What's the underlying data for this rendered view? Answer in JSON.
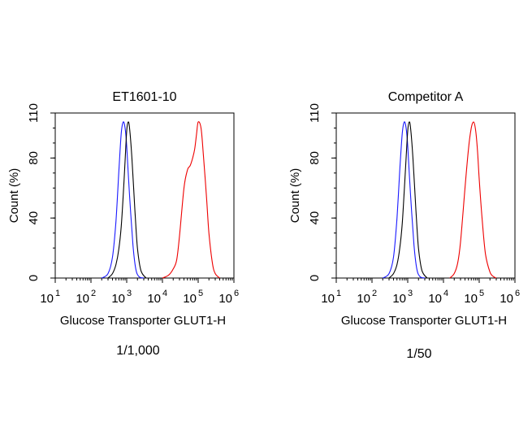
{
  "chart_data": [
    {
      "type": "line",
      "title": "ET1601-10",
      "xlabel": "Glucose Transporter GLUT1-H",
      "ylabel": "Count  (%)",
      "caption": "1/1,000",
      "x_scale": "log10",
      "xlim": [
        10,
        1000000
      ],
      "ylim": [
        0,
        110
      ],
      "x_ticks": [
        {
          "base": "10",
          "exp": "1"
        },
        {
          "base": "10",
          "exp": "2"
        },
        {
          "base": "10",
          "exp": "3"
        },
        {
          "base": "10",
          "exp": "4"
        },
        {
          "base": "10",
          "exp": "5"
        },
        {
          "base": "10",
          "exp": "6"
        }
      ],
      "y_ticks": [
        "0",
        "40",
        "80",
        "110"
      ],
      "grid": false,
      "series": [
        {
          "name": "blue",
          "color": "#1a1aff",
          "x": [
            200,
            300,
            400,
            500,
            600,
            700,
            800,
            900,
            1000,
            1200,
            1500,
            1800,
            2200,
            3000
          ],
          "y": [
            0,
            3,
            14,
            38,
            70,
            96,
            104,
            100,
            88,
            55,
            22,
            6,
            1,
            0
          ]
        },
        {
          "name": "black",
          "color": "#000000",
          "x": [
            300,
            400,
            500,
            600,
            700,
            800,
            900,
            1000,
            1100,
            1200,
            1400,
            1700,
            2000,
            2500,
            3500
          ],
          "y": [
            0,
            3,
            9,
            19,
            34,
            55,
            78,
            98,
            104,
            100,
            80,
            45,
            20,
            5,
            0
          ]
        },
        {
          "name": "red",
          "color": "#ee0000",
          "x": [
            10000,
            15000,
            20000,
            25000,
            30000,
            40000,
            50000,
            60000,
            70000,
            80000,
            90000,
            100000,
            120000,
            140000,
            170000,
            200000,
            250000,
            300000,
            400000
          ],
          "y": [
            0,
            2,
            6,
            12,
            28,
            60,
            72,
            75,
            80,
            86,
            96,
            104,
            100,
            82,
            55,
            30,
            10,
            3,
            0
          ]
        }
      ]
    },
    {
      "type": "line",
      "title": "Competitor A",
      "xlabel": "Glucose Transporter GLUT1-H",
      "ylabel": "Count  (%)",
      "caption": "1/50",
      "x_scale": "log10",
      "xlim": [
        10,
        1000000
      ],
      "ylim": [
        0,
        110
      ],
      "x_ticks": [
        {
          "base": "10",
          "exp": "1"
        },
        {
          "base": "10",
          "exp": "2"
        },
        {
          "base": "10",
          "exp": "3"
        },
        {
          "base": "10",
          "exp": "4"
        },
        {
          "base": "10",
          "exp": "5"
        },
        {
          "base": "10",
          "exp": "6"
        }
      ],
      "y_ticks": [
        "0",
        "40",
        "80",
        "110"
      ],
      "grid": false,
      "series": [
        {
          "name": "blue",
          "color": "#1a1aff",
          "x": [
            200,
            300,
            400,
            500,
            600,
            700,
            800,
            900,
            1000,
            1200,
            1500,
            1800,
            2200,
            3000
          ],
          "y": [
            0,
            3,
            14,
            40,
            72,
            96,
            104,
            100,
            88,
            55,
            22,
            6,
            1,
            0
          ]
        },
        {
          "name": "black",
          "color": "#000000",
          "x": [
            300,
            400,
            500,
            600,
            700,
            800,
            900,
            1000,
            1100,
            1200,
            1400,
            1700,
            2000,
            2500,
            3500
          ],
          "y": [
            0,
            3,
            9,
            20,
            36,
            58,
            80,
            98,
            104,
            100,
            80,
            45,
            20,
            5,
            0
          ]
        },
        {
          "name": "red",
          "color": "#ee0000",
          "x": [
            15000,
            20000,
            25000,
            30000,
            40000,
            50000,
            60000,
            70000,
            80000,
            90000,
            100000,
            120000,
            150000,
            200000,
            250000,
            300000
          ],
          "y": [
            0,
            3,
            10,
            24,
            60,
            86,
            100,
            104,
            98,
            84,
            66,
            40,
            16,
            4,
            1,
            0
          ]
        }
      ]
    }
  ]
}
